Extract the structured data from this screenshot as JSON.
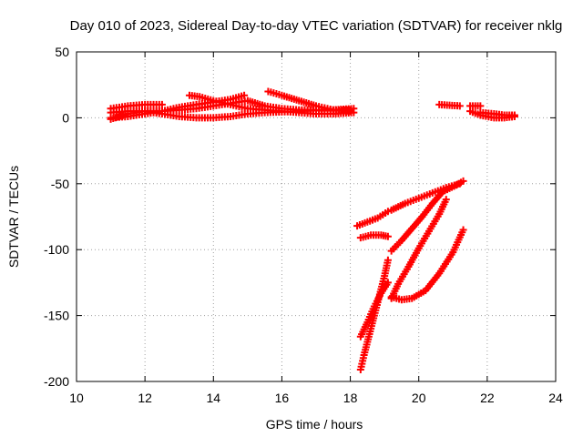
{
  "chart_data": {
    "type": "scatter",
    "title": "Day 010 of 2023, Sidereal Day-to-day VTEC variation (SDTVAR) for receiver nklg",
    "xlabel": "GPS time / hours",
    "ylabel": "SDTVAR / TECUs",
    "xlim": [
      10,
      24
    ],
    "ylim": [
      -200,
      50
    ],
    "xticks": [
      "10",
      "12",
      "14",
      "16",
      "18",
      "20",
      "22",
      "24"
    ],
    "yticks": [
      "50",
      "0",
      "-50",
      "-100",
      "-150",
      "-200"
    ],
    "xtick_values": [
      10,
      12,
      14,
      16,
      18,
      20,
      22,
      24
    ],
    "ytick_values": [
      50,
      0,
      -50,
      -100,
      -150,
      -200
    ],
    "grid": true,
    "marker": "plus",
    "series_color": "#ff0000",
    "series": [
      {
        "points": [
          [
            11.0,
            7
          ],
          [
            11.5,
            9
          ],
          [
            12.0,
            10
          ],
          [
            12.5,
            10
          ]
        ]
      },
      {
        "points": [
          [
            11.0,
            -1
          ],
          [
            11.5,
            3
          ],
          [
            12.0,
            5
          ],
          [
            12.5,
            3
          ],
          [
            13.0,
            1
          ],
          [
            13.5,
            0
          ],
          [
            14.0,
            0
          ],
          [
            14.5,
            1
          ],
          [
            15.0,
            3
          ],
          [
            15.5,
            4
          ],
          [
            16.0,
            4.5
          ],
          [
            16.5,
            5
          ],
          [
            17.0,
            5.5
          ],
          [
            17.5,
            5.5
          ],
          [
            18.0,
            6
          ]
        ]
      },
      {
        "points": [
          [
            11.0,
            4
          ],
          [
            11.5,
            5
          ],
          [
            12.0,
            5
          ],
          [
            12.5,
            5
          ],
          [
            13.0,
            6
          ],
          [
            13.5,
            7
          ],
          [
            14.0,
            9
          ],
          [
            14.5,
            11
          ],
          [
            15.0,
            13
          ],
          [
            15.5,
            9
          ],
          [
            16.0,
            7
          ],
          [
            16.5,
            6
          ],
          [
            17.0,
            6
          ],
          [
            17.5,
            6
          ],
          [
            18.1,
            7
          ]
        ]
      },
      {
        "points": [
          [
            11.0,
            0
          ],
          [
            11.5,
            1
          ],
          [
            12.0,
            3
          ],
          [
            12.5,
            5
          ],
          [
            13.0,
            8
          ],
          [
            13.5,
            10
          ],
          [
            14.0,
            12
          ],
          [
            14.5,
            14
          ],
          [
            14.9,
            17
          ]
        ]
      },
      {
        "points": [
          [
            13.3,
            17
          ],
          [
            13.6,
            16
          ],
          [
            14.0,
            13
          ],
          [
            14.5,
            10
          ],
          [
            15.0,
            7
          ],
          [
            15.5,
            6
          ],
          [
            16.0,
            5
          ],
          [
            16.5,
            4
          ],
          [
            17.0,
            3
          ],
          [
            17.5,
            3
          ],
          [
            18.1,
            4
          ]
        ]
      },
      {
        "points": [
          [
            15.6,
            20
          ],
          [
            16.0,
            17
          ],
          [
            16.5,
            13
          ],
          [
            17.0,
            9
          ],
          [
            17.5,
            6
          ],
          [
            18.0,
            5
          ]
        ]
      },
      {
        "points": [
          [
            20.6,
            10
          ],
          [
            21.2,
            9
          ]
        ]
      },
      {
        "points": [
          [
            21.5,
            9
          ],
          [
            21.8,
            9
          ]
        ]
      },
      {
        "points": [
          [
            21.5,
            5
          ],
          [
            21.8,
            2
          ],
          [
            22.2,
            0
          ],
          [
            22.5,
            0
          ],
          [
            22.8,
            1
          ]
        ]
      },
      {
        "points": [
          [
            21.8,
            4
          ],
          [
            22.2,
            3
          ],
          [
            22.5,
            2
          ],
          [
            22.8,
            2
          ]
        ]
      },
      {
        "points": [
          [
            18.2,
            -82
          ],
          [
            18.5,
            -79
          ],
          [
            18.8,
            -76
          ],
          [
            19.1,
            -71
          ]
        ]
      },
      {
        "points": [
          [
            18.3,
            -91
          ],
          [
            18.6,
            -89
          ],
          [
            18.9,
            -89
          ],
          [
            19.1,
            -90
          ]
        ]
      },
      {
        "points": [
          [
            19.2,
            -70
          ],
          [
            19.6,
            -65
          ],
          [
            20.0,
            -61
          ],
          [
            20.4,
            -57
          ],
          [
            20.8,
            -53
          ],
          [
            21.2,
            -50
          ]
        ]
      },
      {
        "points": [
          [
            18.3,
            -191
          ],
          [
            18.4,
            -180
          ],
          [
            18.5,
            -170
          ],
          [
            18.6,
            -160
          ],
          [
            18.7,
            -150
          ],
          [
            18.8,
            -140
          ],
          [
            18.9,
            -130
          ],
          [
            19.0,
            -120
          ],
          [
            19.1,
            -108
          ]
        ]
      },
      {
        "points": [
          [
            18.3,
            -166
          ],
          [
            18.5,
            -155
          ],
          [
            18.7,
            -143
          ],
          [
            18.9,
            -133
          ],
          [
            19.1,
            -125
          ]
        ]
      },
      {
        "points": [
          [
            19.2,
            -101
          ],
          [
            19.5,
            -93
          ],
          [
            19.8,
            -84
          ],
          [
            20.1,
            -75
          ],
          [
            20.4,
            -65
          ],
          [
            20.7,
            -56
          ],
          [
            21.1,
            -51
          ],
          [
            21.3,
            -48
          ]
        ]
      },
      {
        "points": [
          [
            19.2,
            -137
          ],
          [
            19.4,
            -126
          ],
          [
            19.7,
            -113
          ],
          [
            20.0,
            -99
          ],
          [
            20.3,
            -86
          ],
          [
            20.6,
            -73
          ],
          [
            20.8,
            -62
          ]
        ]
      },
      {
        "points": [
          [
            19.2,
            -136
          ],
          [
            19.5,
            -138
          ],
          [
            19.8,
            -137
          ],
          [
            20.2,
            -131
          ],
          [
            20.6,
            -118
          ],
          [
            21.0,
            -102
          ],
          [
            21.3,
            -85
          ]
        ]
      }
    ]
  }
}
